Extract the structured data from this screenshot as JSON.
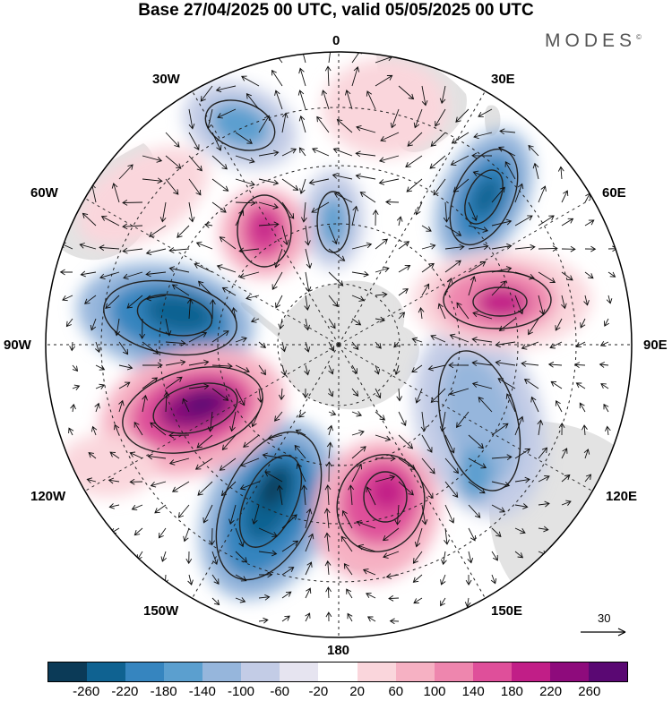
{
  "title": "Base 27/04/2025 00 UTC, valid 05/05/2025 00 UTC",
  "brand": "MODES",
  "brand_mark": "©",
  "longitude_labels": {
    "n0": "0",
    "e30": "30E",
    "e60": "60E",
    "e90": "90E",
    "e120": "120E",
    "e150": "150E",
    "s180": "180",
    "w150": "150W",
    "w120": "120W",
    "w90": "90W",
    "w60": "60W",
    "w30": "30W"
  },
  "reference_vector": {
    "label": "30",
    "icon": "arrow-right-icon"
  },
  "colorbar": {
    "colors": [
      "#0b3a57",
      "#0f6291",
      "#3685bf",
      "#5b9fcf",
      "#96b6dc",
      "#c3cce6",
      "#e6e4f0",
      "#ffffff",
      "#fad6dc",
      "#f6b1c3",
      "#ee86ae",
      "#df4f9a",
      "#c11e87",
      "#8e0b7c",
      "#5a0873"
    ],
    "ticks": [
      "-260",
      "-220",
      "-180",
      "-140",
      "-100",
      "-60",
      "-20",
      "20",
      "60",
      "100",
      "140",
      "180",
      "220",
      "260"
    ]
  },
  "anomaly_centers": [
    {
      "sign": "negative",
      "level": -180,
      "name": "south-atlantic-low"
    },
    {
      "sign": "negative",
      "level": -220,
      "name": "indian-ocean-low"
    },
    {
      "sign": "positive",
      "level": 220,
      "name": "south-indian-high"
    },
    {
      "sign": "positive",
      "level": 180,
      "name": "weddell-high"
    },
    {
      "sign": "negative",
      "level": -140,
      "name": "weddell-low"
    },
    {
      "sign": "negative",
      "level": -220,
      "name": "bellingshausen-low"
    },
    {
      "sign": "positive",
      "level": 260,
      "name": "amundsen-high"
    },
    {
      "sign": "negative",
      "level": -260,
      "name": "south-pacific-low"
    },
    {
      "sign": "positive",
      "level": 220,
      "name": "tasman-high"
    },
    {
      "sign": "negative",
      "level": -140,
      "name": "south-australia-low"
    }
  ]
}
